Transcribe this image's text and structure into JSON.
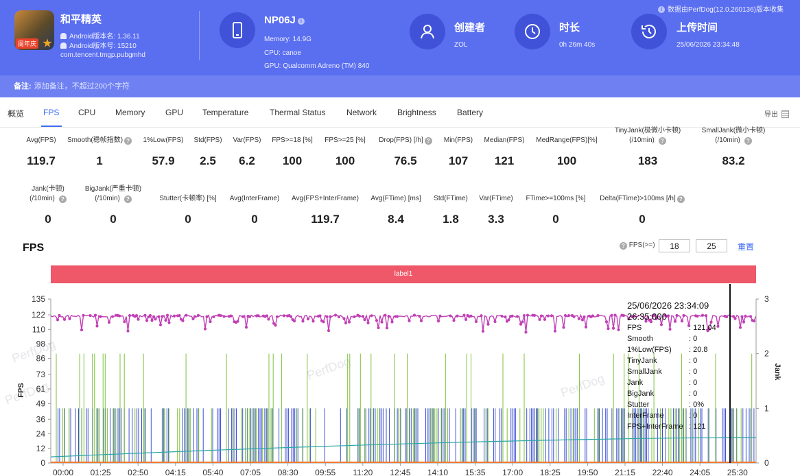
{
  "app": {
    "name": "和平精英",
    "version_name": "Android版本名: 1.36.11",
    "version_code": "Android版本号: 15210",
    "package": "com.tencent.tmgp.pubgmhd",
    "icon_tag": "周年庆"
  },
  "device": {
    "name": "NP06J",
    "memory": "Memory: 14.9G",
    "cpu": "CPU: canoe",
    "gpu": "GPU: Qualcomm Adreno (TM) 840"
  },
  "creator": {
    "label": "创建者",
    "value": "ZOL"
  },
  "duration": {
    "label": "时长",
    "value": "0h 26m 40s"
  },
  "upload": {
    "label": "上传时间",
    "value": "25/06/2026 23:34:48"
  },
  "data_source": "数据由PerfDog(12.0.260136)版本收集",
  "remark": {
    "label": "备注:",
    "placeholder": "添加备注，不超过200个字符"
  },
  "tabs": [
    "概览",
    "FPS",
    "CPU",
    "Memory",
    "GPU",
    "Temperature",
    "Thermal Status",
    "Network",
    "Brightness",
    "Battery"
  ],
  "active_tab": "FPS",
  "export_label": "导出",
  "metrics_row1": [
    {
      "label": "Avg(FPS)",
      "value": "119.7"
    },
    {
      "label": "Smooth(稳帧指数)",
      "value": "1",
      "help": true
    },
    {
      "label": "1%Low(FPS)",
      "value": "57.9"
    },
    {
      "label": "Std(FPS)",
      "value": "2.5"
    },
    {
      "label": "Var(FPS)",
      "value": "6.2"
    },
    {
      "label": "FPS>=18 [%]",
      "value": "100"
    },
    {
      "label": "FPS>=25 [%]",
      "value": "100"
    },
    {
      "label": "Drop(FPS) [/h]",
      "value": "76.5",
      "help": true
    },
    {
      "label": "Min(FPS)",
      "value": "107"
    },
    {
      "label": "Median(FPS)",
      "value": "121"
    },
    {
      "label": "MedRange(FPS)[%]",
      "value": "100"
    },
    {
      "label": "TinyJank(极微小卡顿)",
      "label2": "(/10min)",
      "value": "183",
      "help": true
    },
    {
      "label": "SmallJank(微小卡顿)",
      "label2": "(/10min)",
      "value": "83.2",
      "help": true
    }
  ],
  "metrics_row2": [
    {
      "label": "Jank(卡顿)",
      "label2": "(/10min)",
      "value": "0",
      "help": true
    },
    {
      "label": "BigJank(严重卡顿)",
      "label2": "(/10min)",
      "value": "0",
      "help": true
    },
    {
      "label": "Stutter(卡顿率) [%]",
      "value": "0"
    },
    {
      "label": "Avg(InterFrame)",
      "value": "0"
    },
    {
      "label": "Avg(FPS+InterFrame)",
      "value": "119.7"
    },
    {
      "label": "Avg(FTime) [ms]",
      "value": "8.4"
    },
    {
      "label": "Std(FTime)",
      "value": "1.8"
    },
    {
      "label": "Var(FTime)",
      "value": "3.3"
    },
    {
      "label": "FTime>=100ms [%]",
      "value": "0"
    },
    {
      "label": "Delta(FTime)>100ms [/h]",
      "value": "0",
      "help": true
    }
  ],
  "fps_section": {
    "title": "FPS",
    "threshold_label": "FPS(>=)",
    "threshold1": "18",
    "threshold2": "25",
    "reset_label": "重置",
    "label_bar": "label1"
  },
  "watermark": "PerfDog",
  "tooltip": {
    "time1": "25/06/2026 23:34:09",
    "time2": "26:35:000",
    "rows": [
      {
        "k": "FPS",
        "v": ": 121.04"
      },
      {
        "k": "Smooth",
        "v": ": 0"
      },
      {
        "k": "1%Low(FPS)",
        "v": ": 20.8"
      },
      {
        "k": "TinyJank",
        "v": ": 0"
      },
      {
        "k": "SmallJank",
        "v": ": 0"
      },
      {
        "k": "Jank",
        "v": ": 0"
      },
      {
        "k": "BigJank",
        "v": ": 0"
      },
      {
        "k": "Stutter",
        "v": ": 0%"
      },
      {
        "k": "InterFrame",
        "v": ": 0"
      },
      {
        "k": "FPS+InterFrame",
        "v": ": 121"
      }
    ]
  },
  "chart_data": {
    "type": "line",
    "ylabel": "FPS",
    "y2label": "Jank",
    "yticks": [
      0,
      12,
      24,
      36,
      49,
      61,
      73,
      86,
      98,
      110,
      122,
      135
    ],
    "ylim": [
      0,
      135
    ],
    "y2ticks": [
      0,
      1,
      2,
      3
    ],
    "y2lim": [
      0,
      3
    ],
    "xticks": [
      "00:00",
      "01:25",
      "02:50",
      "04:15",
      "05:40",
      "07:05",
      "08:30",
      "09:55",
      "11:20",
      "12:45",
      "14:10",
      "15:35",
      "17:00",
      "18:25",
      "19:50",
      "21:15",
      "22:40",
      "24:05",
      "25:30"
    ],
    "x_range_minutes": [
      0,
      26.67
    ],
    "series": [
      {
        "name": "FPS",
        "color": "#c13fb5",
        "baseline": 121,
        "dip_min": 107
      },
      {
        "name": "1%Low(FPS)",
        "color": "#2ba6a8",
        "start": 5,
        "end": 21
      },
      {
        "name": "SmallJank",
        "color": "#7cc13a",
        "spike_values": [
          0,
          1,
          2
        ]
      },
      {
        "name": "TinyJank",
        "color": "#3c4fd6",
        "spike_values": [
          0,
          1
        ]
      },
      {
        "name": "Jank",
        "color": "#f07a2e",
        "constant": 0
      }
    ],
    "cursor_time": "26:35"
  }
}
